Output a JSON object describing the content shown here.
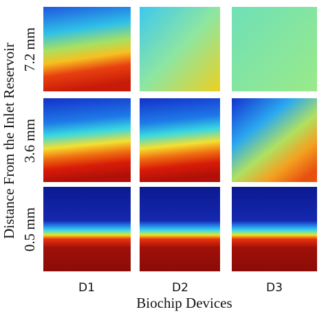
{
  "figure": {
    "y_label": "Distance From the Inlet Reservoir",
    "rows": [
      "7.2 mm",
      "3.6 mm",
      "0.5 mm"
    ],
    "columns": [
      "D1",
      "D2",
      "D3"
    ],
    "x_label": "Biochip Devices"
  }
}
